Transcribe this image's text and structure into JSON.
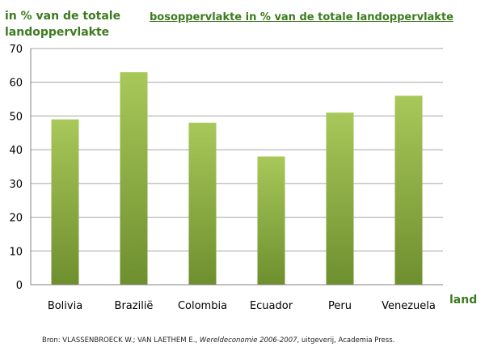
{
  "chart_data": {
    "type": "bar",
    "title": "bosoppervlakte in % van de totale landoppervlakte",
    "ylabel_line1": "in % van de totale",
    "ylabel_line2": "landoppervlakte",
    "xlabel": "land",
    "categories": [
      "Bolivia",
      "Braziliё",
      "Colombia",
      "Ecuador",
      "Peru",
      "Venezuela"
    ],
    "values": [
      49,
      63,
      48,
      38,
      51,
      56
    ],
    "ylim": [
      0,
      70
    ],
    "yticks": [
      0,
      10,
      20,
      30,
      40,
      50,
      60,
      70
    ],
    "grid": true,
    "bar_color_top": "#a8c85a",
    "bar_color_bottom": "#6e8f2e",
    "label_color": "#3d7a1f"
  },
  "source": {
    "prefix": "Bron: VLASSENBROECK W.; VAN LAETHEM E., ",
    "work": "Wereldeconomie 2006-2007",
    "suffix": ", uitgeverij, Academia Press."
  }
}
